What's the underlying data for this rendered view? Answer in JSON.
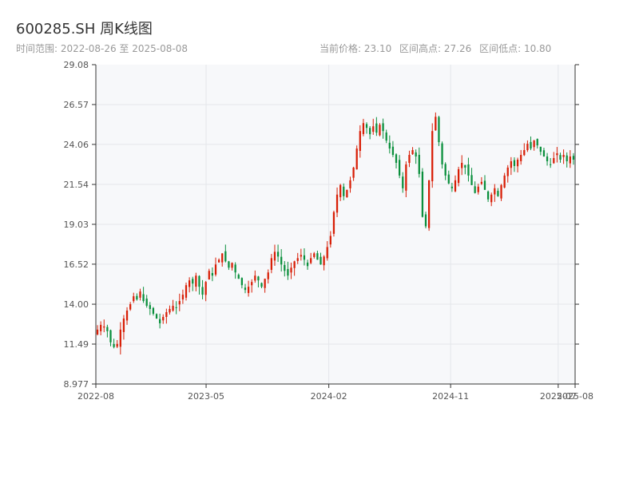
{
  "header": {
    "title": "600285.SH 周K线图",
    "time_range_label": "时间范围: 2022-08-26 至 2025-08-08",
    "current_price_label": "当前价格: 23.10",
    "range_high_label": "区间高点: 27.26",
    "range_low_label": "区间低点: 10.80"
  },
  "colors": {
    "up": "#d81e06",
    "down": "#0a8f3c",
    "plot_bg": "#f7f8fa",
    "grid": "#e4e6ea",
    "axis": "#333333"
  },
  "chart_data": {
    "type": "candlestick",
    "title": "600285.SH 周K线图",
    "xlabel": "",
    "ylabel": "",
    "ylim": [
      8.977,
      29.08
    ],
    "y_ticks": [
      "8.977",
      "11.49",
      "14.00",
      "16.52",
      "19.03",
      "21.54",
      "24.06",
      "26.57",
      "29.08"
    ],
    "x_range": [
      "2022-08-26",
      "2025-08-08"
    ],
    "x_ticks": [
      {
        "date": "2022-08-01",
        "label": "2022-08"
      },
      {
        "date": "2023-05-01",
        "label": "2023-05"
      },
      {
        "date": "2024-02-01",
        "label": "2024-02"
      },
      {
        "date": "2024-11-01",
        "label": "2024-11"
      },
      {
        "date": "2025-07-01",
        "label": "2025-07"
      },
      {
        "date": "2025-08-08",
        "label": "2025-08"
      }
    ],
    "grid": true,
    "interval": "weekly",
    "closes": [
      12.4,
      12.7,
      12.6,
      12.3,
      11.6,
      11.3,
      11.5,
      12.4,
      13.1,
      13.6,
      14.0,
      14.5,
      14.3,
      14.8,
      14.2,
      13.9,
      13.7,
      13.4,
      13.1,
      12.8,
      13.2,
      13.5,
      13.7,
      13.9,
      13.8,
      14.2,
      14.6,
      15.2,
      15.5,
      15.3,
      15.8,
      15.1,
      14.6,
      15.4,
      16.1,
      15.8,
      16.5,
      16.8,
      17.2,
      16.7,
      16.3,
      16.6,
      16.0,
      15.6,
      15.2,
      14.9,
      15.1,
      15.4,
      15.8,
      15.5,
      15.1,
      15.6,
      16.0,
      16.9,
      17.3,
      17.0,
      16.5,
      16.1,
      15.8,
      16.3,
      16.7,
      16.9,
      17.1,
      16.8,
      16.4,
      16.9,
      17.2,
      16.8,
      16.5,
      17.0,
      17.6,
      18.3,
      19.8,
      20.9,
      21.5,
      20.8,
      21.2,
      21.8,
      22.6,
      23.8,
      24.9,
      25.4,
      25.1,
      24.7,
      25.2,
      24.8,
      25.3,
      24.9,
      24.3,
      23.8,
      23.4,
      22.9,
      22.1,
      21.3,
      22.8,
      23.4,
      23.7,
      23.3,
      22.2,
      19.5,
      18.9,
      21.8,
      24.9,
      25.8,
      24.2,
      22.8,
      22.1,
      21.6,
      21.3,
      21.8,
      22.5,
      22.9,
      22.6,
      22.1,
      21.5,
      21.0,
      21.4,
      21.7,
      21.2,
      20.6,
      20.9,
      21.3,
      20.8,
      21.5,
      22.1,
      22.6,
      23.0,
      22.7,
      23.1,
      23.4,
      23.7,
      24.1,
      23.8,
      24.3,
      24.0,
      23.6,
      23.3,
      23.0,
      22.8,
      23.2,
      23.5,
      23.1,
      23.4,
      23.0,
      23.3,
      23.1
    ],
    "current_price": 23.1,
    "range_high": 27.26,
    "range_low": 10.8
  }
}
